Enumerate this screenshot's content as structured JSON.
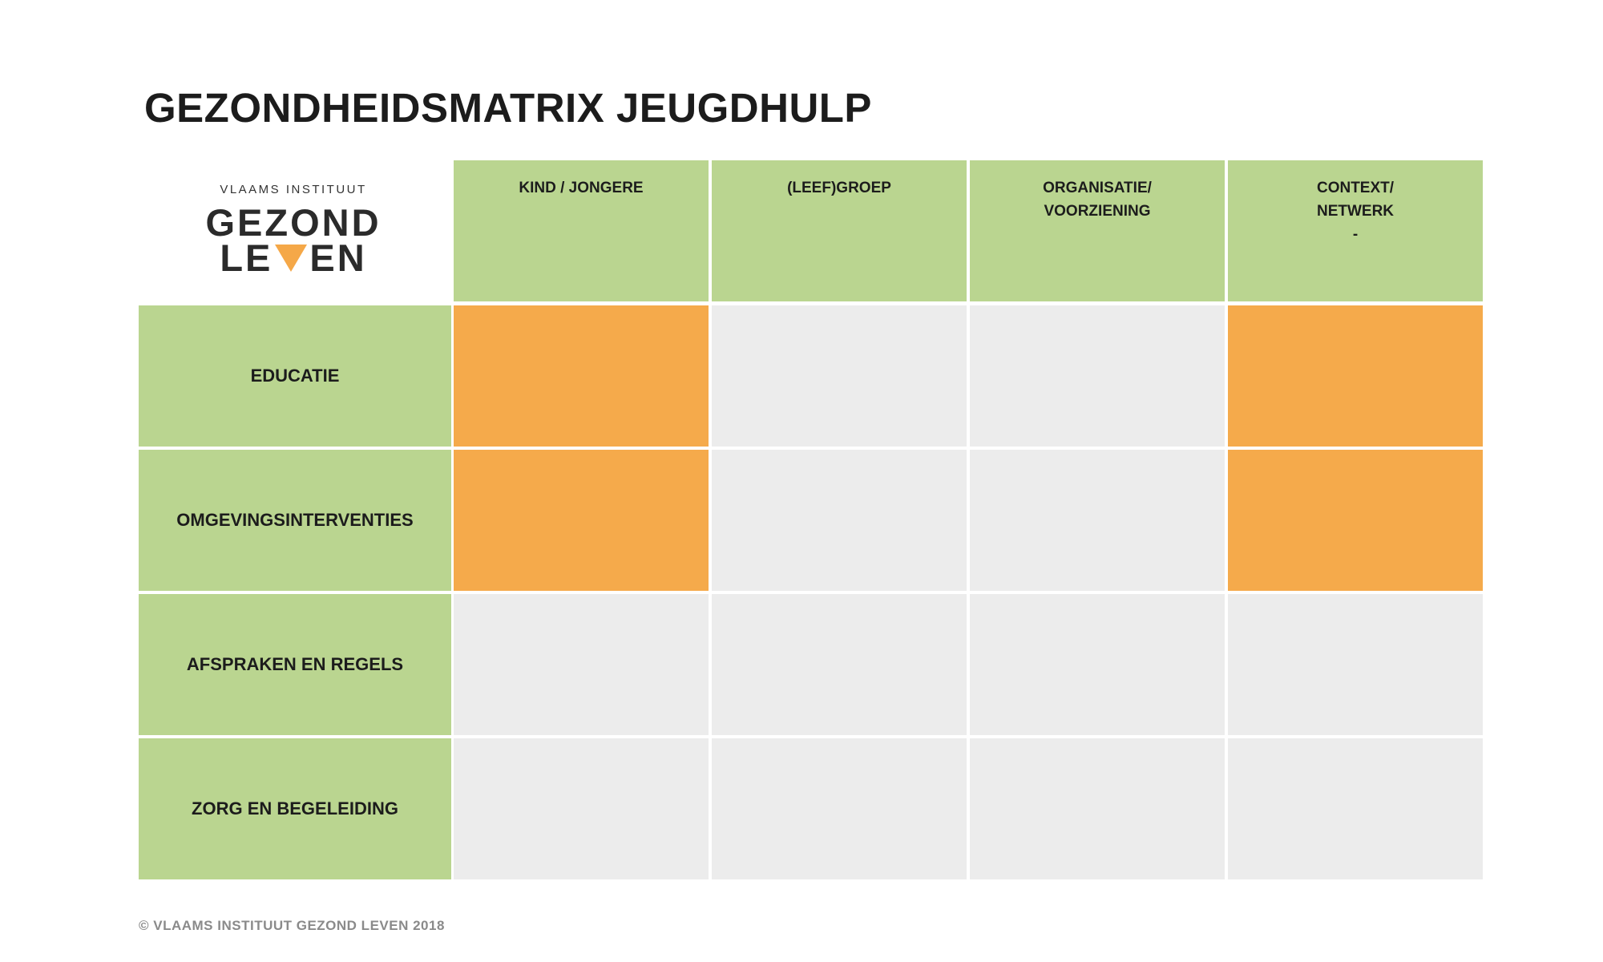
{
  "title": "GEZONDHEIDSMATRIX JEUGDHULP",
  "logo": {
    "top_text": "VLAAMS INSTITUUT",
    "line1": "GEZOND",
    "line2_left": "LE",
    "line2_right": "EN",
    "triangle_color": "#f5a848"
  },
  "matrix": {
    "columns": [
      {
        "lines": [
          "KIND / JONGERE"
        ]
      },
      {
        "lines": [
          "(LEEF)GROEP"
        ]
      },
      {
        "lines": [
          "ORGANISATIE/",
          "VOORZIENING"
        ]
      },
      {
        "lines": [
          "CONTEXT/",
          "NETWERK",
          "-"
        ]
      }
    ],
    "rows": [
      {
        "label": "EDUCATIE",
        "highlighted": [
          true,
          false,
          false,
          true
        ]
      },
      {
        "label": "OMGEVINGSINTERVENTIES",
        "highlighted": [
          true,
          false,
          false,
          true
        ]
      },
      {
        "label": "AFSPRAKEN EN REGELS",
        "highlighted": [
          false,
          false,
          false,
          false
        ]
      },
      {
        "label": "ZORG EN BEGELEIDING",
        "highlighted": [
          false,
          false,
          false,
          false
        ]
      }
    ]
  },
  "colors": {
    "header_green": "#bad590",
    "highlight_orange": "#f5aa4b",
    "empty_grey": "#ececec"
  },
  "footer": "© VLAAMS INSTITUUT GEZOND LEVEN 2018"
}
